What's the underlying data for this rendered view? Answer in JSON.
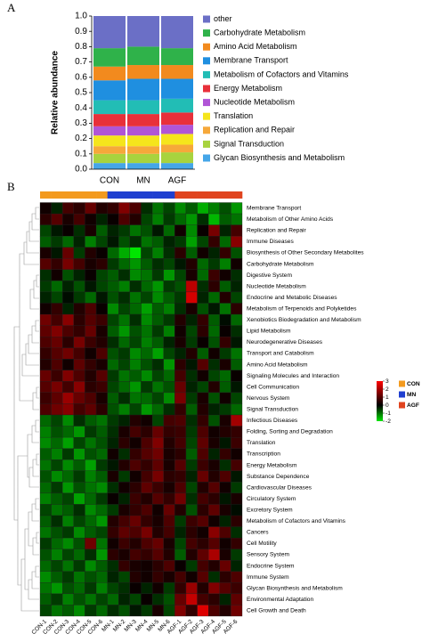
{
  "chart_data": [
    {
      "type": "stacked_bar",
      "label": "A",
      "ylabel": "Relative abundance",
      "categories": [
        "CON",
        "MN",
        "AGF"
      ],
      "ylim": [
        0,
        1
      ],
      "yticks": [
        {
          "value": 0,
          "label": "0.0"
        },
        0.1,
        0.2,
        0.3,
        0.4,
        0.5,
        0.6,
        0.7,
        0.8,
        0.9,
        {
          "value": 1,
          "label": "1.0"
        }
      ],
      "series": [
        {
          "name": "other",
          "color": "#6b6fc6",
          "values": [
            0.21,
            0.2,
            0.21
          ]
        },
        {
          "name": "Carbohydrate Metabolism",
          "color": "#2fb24a",
          "values": [
            0.12,
            0.12,
            0.11
          ]
        },
        {
          "name": "Amino Acid Metabolism",
          "color": "#f28a1e",
          "values": [
            0.09,
            0.09,
            0.09
          ]
        },
        {
          "name": "Membrane Transport",
          "color": "#1f8fe0",
          "values": [
            0.13,
            0.14,
            0.13
          ]
        },
        {
          "name": "Metabolism of Cofactors and Vitamins",
          "color": "#22bdb5",
          "values": [
            0.09,
            0.09,
            0.09
          ]
        },
        {
          "name": "Energy Metabolism",
          "color": "#e8303a",
          "values": [
            0.08,
            0.08,
            0.08
          ]
        },
        {
          "name": "Nucleotide Metabolism",
          "color": "#b055d6",
          "values": [
            0.06,
            0.06,
            0.06
          ]
        },
        {
          "name": "Translation",
          "color": "#f5e51c",
          "values": [
            0.07,
            0.07,
            0.07
          ]
        },
        {
          "name": "Replication and Repair",
          "color": "#f6a83a",
          "values": [
            0.05,
            0.05,
            0.05
          ]
        },
        {
          "name": "Signal Transduction",
          "color": "#a8d33e",
          "values": [
            0.06,
            0.06,
            0.07
          ]
        },
        {
          "name": "Glycan Biosynthesis and Metabolism",
          "color": "#45a6e8",
          "values": [
            0.04,
            0.04,
            0.04
          ]
        }
      ]
    },
    {
      "type": "heatmap",
      "label": "B",
      "groups": [
        {
          "name": "CON",
          "color": "#f39a1e"
        },
        {
          "name": "MN",
          "color": "#1f3fd0"
        },
        {
          "name": "AGF",
          "color": "#e0441f"
        }
      ],
      "columns": [
        "CON-1",
        "CON-2",
        "CON-3",
        "CON-4",
        "CON-5",
        "CON-6",
        "MN-1",
        "MN-2",
        "MN-3",
        "MN-4",
        "MN-5",
        "MN-6",
        "AGF-1",
        "AGF-2",
        "AGF-3",
        "AGF-4",
        "AGF-5",
        "AGF-6"
      ],
      "rows": [
        "Membrane Transport",
        "Metabolism of Other Amino Acids",
        "Replication and Repair",
        "Immune Diseases",
        "Biosynthesis of Other Secondary Metabolites",
        "Carbohydrate Metabolism",
        "Digestive System",
        "Nucleotide Metabolism",
        "Endocrine and Metabolic Diseases",
        "Metabolism of Terpenoids and Polyketides",
        "Xenobiotics Biodegradation and Metabolism",
        "Lipid Metabolism",
        "Neurodegenerative Diseases",
        "Transport and Catabolism",
        "Amino Acid Metabolism",
        "Signaling Molecules and Interaction",
        "Cell Communication",
        "Nervous System",
        "Signal Transduction",
        "Infectious Diseases",
        "Folding, Sorting and Degradation",
        "Translation",
        "Transcription",
        "Energy Metabolism",
        "Substance Dependence",
        "Cardiovascular Diseases",
        "Circulatory System",
        "Excretory System",
        "Metabolism of Cofactors and Vitamins",
        "Cancers",
        "Cell Motility",
        "Sensory System",
        "Endocrine System",
        "Immune System",
        "Glycan Biosynthesis and Metabolism",
        "Environmental Adaptation",
        "Cell Growth and Death"
      ],
      "zlim": [
        -2,
        3
      ],
      "zticks": [
        3,
        2,
        1,
        0,
        -1,
        -2
      ],
      "color_scale": {
        "low": "#00e600",
        "mid": "#000000",
        "high": "#ff0000"
      },
      "values": [
        [
          0.2,
          -0.3,
          0.8,
          0.5,
          1.2,
          0.4,
          0.6,
          1.5,
          0.9,
          -0.4,
          -1.0,
          -0.6,
          -1.2,
          -0.8,
          -1.5,
          -1.1,
          -0.7,
          -1.3
        ],
        [
          0.5,
          1.0,
          0.3,
          0.8,
          0.2,
          -0.3,
          0.1,
          0.9,
          0.4,
          -0.6,
          -1.1,
          -0.5,
          -0.9,
          -1.3,
          -0.4,
          -1.6,
          -0.8,
          -1.0
        ],
        [
          -0.6,
          -0.2,
          0.1,
          -0.4,
          0.3,
          -0.8,
          -0.3,
          -0.5,
          -1.0,
          -0.7,
          -0.2,
          -0.9,
          0.2,
          -1.2,
          0.1,
          1.4,
          -0.3,
          0.8
        ],
        [
          -0.8,
          -0.5,
          -0.9,
          -0.3,
          -1.1,
          -0.6,
          -0.2,
          -0.7,
          -0.4,
          -1.0,
          -0.8,
          -0.3,
          -0.5,
          -1.4,
          -0.6,
          0.6,
          -0.9,
          1.6
        ],
        [
          0.3,
          -0.2,
          1.2,
          -0.5,
          0.4,
          0.1,
          -0.9,
          -1.5,
          -2.0,
          -0.6,
          -1.1,
          -0.4,
          0.5,
          -0.8,
          0.2,
          -0.3,
          0.6,
          -0.7
        ],
        [
          1.0,
          0.6,
          1.4,
          0.8,
          0.3,
          0.5,
          -0.5,
          -0.9,
          -1.3,
          -0.8,
          -0.4,
          -0.6,
          -0.2,
          0.4,
          -0.9,
          -0.5,
          -1.1,
          0.2
        ],
        [
          -0.4,
          0.2,
          -0.7,
          -0.3,
          0.1,
          -0.6,
          -0.8,
          -0.4,
          -1.2,
          -1.0,
          -0.5,
          -1.3,
          -0.6,
          0.3,
          -0.9,
          0.7,
          0.2,
          -0.4
        ],
        [
          -0.5,
          -0.9,
          -0.3,
          -0.7,
          -0.2,
          -0.6,
          -0.8,
          -1.1,
          -0.4,
          -0.9,
          -1.3,
          -0.5,
          -0.7,
          2.2,
          -0.4,
          0.5,
          -0.8,
          -0.3
        ],
        [
          -0.3,
          -0.6,
          -0.1,
          -0.5,
          -0.9,
          -0.2,
          -0.7,
          -0.4,
          -1.0,
          -0.6,
          -1.2,
          -0.8,
          -0.5,
          2.5,
          -0.3,
          -0.9,
          0.4,
          -0.6
        ],
        [
          0.2,
          0.6,
          -0.3,
          0.4,
          0.9,
          0.1,
          -1.2,
          -0.6,
          -0.9,
          -1.4,
          -0.8,
          -1.1,
          -0.4,
          0.3,
          -0.7,
          -0.2,
          -1.0,
          0.5
        ],
        [
          1.3,
          0.8,
          1.6,
          0.5,
          1.0,
          0.7,
          -0.6,
          -1.0,
          -0.4,
          -1.2,
          -0.8,
          -0.5,
          0.4,
          -0.3,
          0.6,
          -0.8,
          -0.1,
          -0.9
        ],
        [
          1.1,
          1.5,
          0.9,
          0.6,
          1.2,
          0.3,
          -0.8,
          -1.3,
          -0.7,
          -1.0,
          -0.5,
          -1.1,
          0.2,
          -0.6,
          0.5,
          -0.9,
          0.1,
          -0.4
        ],
        [
          0.9,
          1.2,
          0.5,
          1.4,
          0.7,
          0.4,
          -0.4,
          -0.9,
          -0.6,
          -1.1,
          -0.8,
          -0.3,
          0.3,
          -0.5,
          0.1,
          -0.7,
          0.6,
          -0.2
        ],
        [
          0.6,
          1.0,
          1.3,
          0.8,
          0.2,
          0.9,
          -0.7,
          -0.5,
          -1.2,
          -0.9,
          -1.4,
          -0.6,
          -0.3,
          0.4,
          -0.8,
          0.2,
          -0.5,
          -1.0
        ],
        [
          0.4,
          0.9,
          0.2,
          1.1,
          0.6,
          0.3,
          -0.9,
          -0.6,
          -1.1,
          -0.7,
          -0.4,
          -1.3,
          0.5,
          -0.2,
          1.0,
          -0.4,
          0.3,
          -0.8
        ],
        [
          1.2,
          0.7,
          1.5,
          0.9,
          0.4,
          1.0,
          -0.5,
          -1.0,
          -0.8,
          -1.2,
          -0.6,
          -0.9,
          0.8,
          -0.4,
          0.2,
          -0.6,
          -0.9,
          0.1
        ],
        [
          1.0,
          1.4,
          0.8,
          1.6,
          0.5,
          0.7,
          -0.6,
          -0.9,
          -1.3,
          -0.5,
          -1.0,
          -0.7,
          1.2,
          -0.3,
          -0.6,
          0.4,
          -0.8,
          -0.2
        ],
        [
          0.7,
          1.1,
          1.8,
          1.2,
          0.9,
          0.3,
          -0.8,
          -0.4,
          -1.0,
          -0.9,
          -0.6,
          -1.2,
          1.4,
          -0.5,
          0.3,
          -0.7,
          0.2,
          -0.6
        ],
        [
          0.9,
          1.3,
          1.6,
          0.8,
          1.1,
          0.5,
          -0.7,
          -1.1,
          -0.6,
          -1.3,
          -0.9,
          -0.4,
          0.6,
          -0.8,
          0.4,
          -0.3,
          -0.5,
          -0.9
        ],
        [
          -0.9,
          -0.6,
          -1.2,
          -0.4,
          -0.8,
          -1.0,
          -0.5,
          -0.3,
          0.4,
          0.2,
          -0.6,
          0.8,
          0.9,
          -0.4,
          0.6,
          -0.7,
          0.3,
          1.9
        ],
        [
          -1.1,
          -0.7,
          -0.9,
          -1.3,
          -0.5,
          -0.8,
          -0.4,
          0.3,
          0.8,
          0.5,
          1.2,
          0.6,
          0.7,
          -0.5,
          0.9,
          0.2,
          0.4,
          0.6
        ],
        [
          -1.2,
          -0.9,
          -1.4,
          -0.6,
          -1.0,
          -0.7,
          -0.3,
          0.5,
          0.2,
          0.9,
          1.5,
          0.4,
          0.8,
          -0.6,
          1.1,
          0.3,
          -0.2,
          0.7
        ],
        [
          -0.8,
          -1.1,
          -0.5,
          -1.3,
          -0.7,
          -0.9,
          0.2,
          -0.4,
          0.6,
          1.0,
          1.3,
          0.3,
          0.5,
          -0.8,
          0.9,
          -0.3,
          0.6,
          0.2
        ],
        [
          -1.0,
          -0.6,
          -1.2,
          -0.8,
          -1.4,
          -0.5,
          -0.2,
          0.4,
          0.9,
          0.6,
          1.1,
          0.3,
          1.0,
          -0.5,
          0.7,
          0.3,
          -0.4,
          0.8
        ],
        [
          -0.7,
          -1.2,
          -0.9,
          -0.5,
          -1.1,
          -0.8,
          0.3,
          -0.5,
          0.2,
          0.8,
          1.4,
          0.5,
          0.6,
          -0.3,
          1.2,
          0.4,
          0.9,
          -0.2
        ],
        [
          -0.9,
          -0.5,
          -1.3,
          -0.7,
          -1.0,
          -1.2,
          -0.4,
          0.2,
          0.5,
          1.1,
          0.7,
          0.3,
          0.9,
          -0.6,
          0.4,
          1.0,
          0.2,
          -0.5
        ],
        [
          -1.1,
          -0.8,
          -0.6,
          -1.4,
          -0.9,
          -0.5,
          0.1,
          -0.3,
          0.7,
          0.4,
          1.0,
          0.6,
          1.3,
          -0.4,
          0.8,
          0.5,
          -0.2,
          0.3
        ],
        [
          -0.6,
          -1.0,
          -0.8,
          -0.4,
          -1.2,
          -0.9,
          -0.5,
          0.3,
          0.6,
          0.9,
          0.2,
          1.2,
          0.4,
          -0.7,
          0.5,
          1.1,
          0.3,
          -0.1
        ],
        [
          -0.8,
          -0.4,
          -1.1,
          -0.6,
          -0.9,
          -1.3,
          0.4,
          0.8,
          1.2,
          0.6,
          0.3,
          0.9,
          -0.5,
          0.7,
          1.0,
          0.2,
          -0.3,
          0.5
        ],
        [
          -1.0,
          -0.7,
          -0.5,
          -1.2,
          -0.8,
          -0.6,
          0.6,
          1.1,
          0.9,
          1.4,
          0.4,
          0.8,
          -0.3,
          0.5,
          0.2,
          1.6,
          0.9,
          -0.4
        ],
        [
          -0.5,
          -0.9,
          -1.2,
          -0.7,
          1.3,
          -1.0,
          0.2,
          0.7,
          0.4,
          0.9,
          1.2,
          0.3,
          -0.6,
          0.8,
          0.5,
          1.0,
          0.2,
          0.6
        ],
        [
          -0.7,
          -1.1,
          -0.6,
          -0.9,
          -0.4,
          -1.3,
          0.5,
          0.3,
          0.8,
          0.6,
          1.0,
          0.4,
          -0.8,
          0.4,
          1.1,
          2.0,
          0.3,
          -0.5
        ],
        [
          -0.9,
          -0.6,
          -1.0,
          -0.5,
          -1.2,
          -0.8,
          -0.4,
          0.6,
          0.3,
          0.2,
          0.5,
          0.9,
          0.1,
          -0.5,
          0.8,
          0.4,
          1.2,
          -0.3
        ],
        [
          -1.2,
          -0.8,
          -0.5,
          -1.0,
          -0.7,
          -0.9,
          -0.3,
          -0.6,
          0.4,
          0.2,
          0.6,
          0.3,
          0.8,
          0.2,
          1.0,
          -0.4,
          0.5,
          0.9
        ],
        [
          -1.0,
          -1.3,
          -0.7,
          -0.9,
          -0.5,
          -1.1,
          -0.6,
          -0.4,
          0.1,
          -0.3,
          0.2,
          -0.5,
          0.6,
          1.8,
          0.4,
          1.5,
          1.0,
          0.7
        ],
        [
          -0.8,
          -0.5,
          -1.1,
          -0.7,
          -1.0,
          -0.6,
          -0.9,
          -0.3,
          -0.6,
          0.1,
          -0.4,
          -0.7,
          1.2,
          2.3,
          0.8,
          0.5,
          -0.3,
          1.1
        ],
        [
          -0.6,
          -1.0,
          -0.8,
          -1.2,
          -0.5,
          -0.9,
          -0.4,
          -0.7,
          -0.2,
          -0.5,
          0.3,
          -0.6,
          1.5,
          0.6,
          2.6,
          0.9,
          0.4,
          1.3
        ]
      ]
    }
  ]
}
